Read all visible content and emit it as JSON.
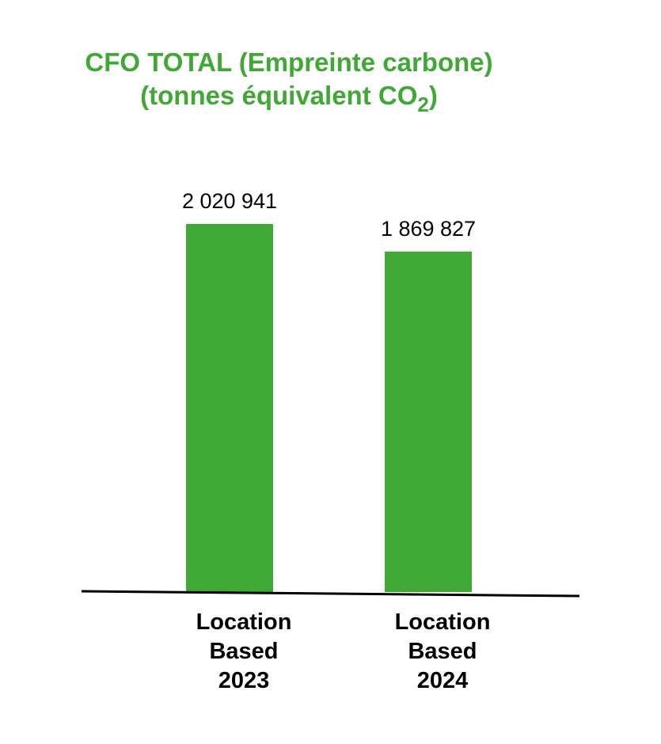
{
  "chart_data": {
    "type": "bar",
    "title_line1": "CFO TOTAL (Empreinte carbone)",
    "title_line2_prefix": "(tonnes équivalent CO",
    "title_line2_subscript": "2",
    "title_line2_suffix": ")",
    "categories": [
      [
        "Location",
        "Based",
        "2023"
      ],
      [
        "Location",
        "Based",
        "2024"
      ]
    ],
    "values": [
      2020941,
      1869827
    ],
    "value_labels": [
      "2 020 941",
      "1 869 827"
    ],
    "ylim": [
      0,
      2100000
    ],
    "grid": false,
    "legend": "none"
  },
  "colors": {
    "bar": "#40a936",
    "title": "#40a936",
    "axis": "#000000",
    "text": "#000000"
  }
}
